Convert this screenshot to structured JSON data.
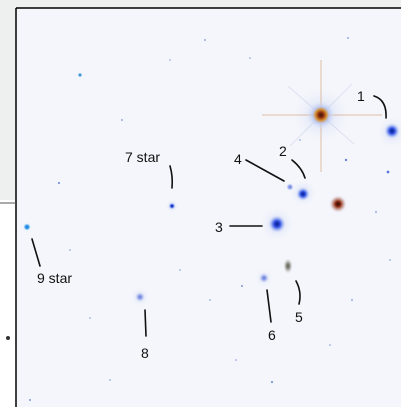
{
  "labels": {
    "obj1": "1",
    "obj2": "2",
    "obj3": "3",
    "obj4": "4",
    "obj5": "5",
    "obj6": "6",
    "obj7": "7 star",
    "obj8": "8",
    "obj9": "9 star"
  },
  "colors": {
    "sky": "#f4f6fb",
    "frame": "#000000",
    "background_gray": "#eef0f0",
    "blue_object": "#2c4fe0",
    "red_star": "#8a2a10",
    "orange_star": "#d38a2a",
    "label_text": "#111111"
  }
}
